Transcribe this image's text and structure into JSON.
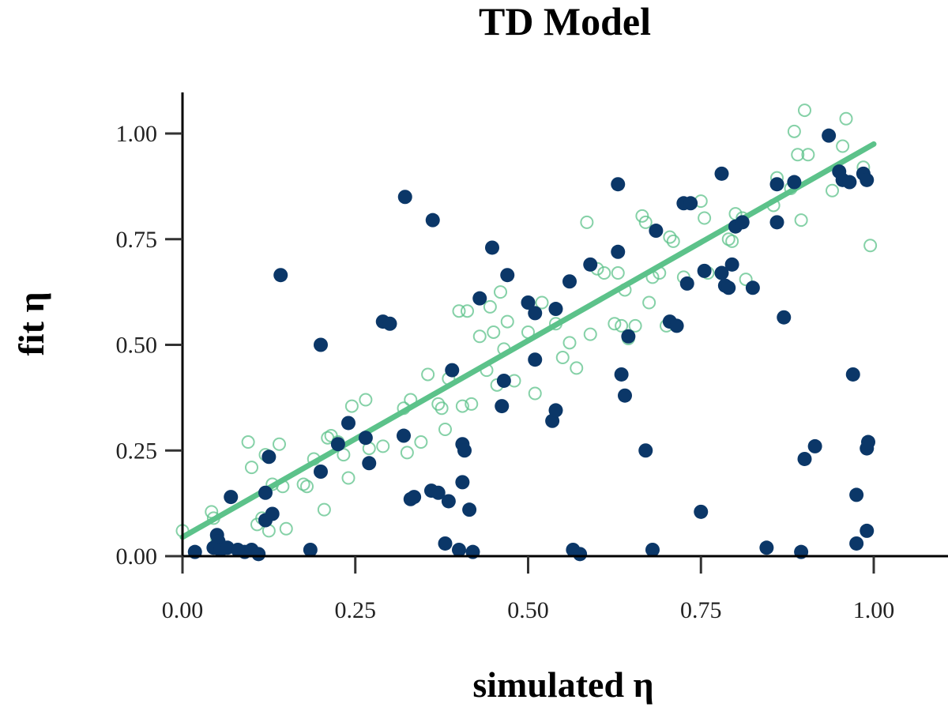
{
  "chart_data": {
    "type": "scatter",
    "title": "TD Model",
    "xlabel": "simulated η",
    "ylabel": "fit η",
    "xlim": [
      0.0,
      1.08
    ],
    "ylim": [
      0.0,
      1.1
    ],
    "xticks": [
      0.0,
      0.25,
      0.5,
      0.75,
      1.0
    ],
    "yticks": [
      0.0,
      0.25,
      0.5,
      0.75,
      1.0
    ],
    "xtick_labels": [
      "0.00",
      "0.25",
      "0.50",
      "0.75",
      "1.00"
    ],
    "ytick_labels": [
      "0.00",
      "0.25",
      "0.50",
      "0.75",
      "1.00"
    ],
    "grid": false,
    "legend": null,
    "colors": {
      "filled": "#0b3768",
      "open": "#5cc28a",
      "line": "#5cc28a"
    },
    "fit_line": {
      "x": [
        0.0,
        1.0
      ],
      "y": [
        0.045,
        0.975
      ]
    },
    "series": [
      {
        "marker": "open",
        "x": [
          0.0,
          0.042,
          0.045,
          0.05,
          0.095,
          0.1,
          0.108,
          0.115,
          0.12,
          0.125,
          0.13,
          0.14,
          0.145,
          0.15,
          0.175,
          0.18,
          0.19,
          0.205,
          0.21,
          0.215,
          0.225,
          0.233,
          0.24,
          0.245,
          0.265,
          0.27,
          0.29,
          0.32,
          0.325,
          0.33,
          0.345,
          0.355,
          0.37,
          0.375,
          0.38,
          0.385,
          0.4,
          0.405,
          0.412,
          0.418,
          0.43,
          0.44,
          0.445,
          0.45,
          0.455,
          0.46,
          0.465,
          0.47,
          0.48,
          0.5,
          0.51,
          0.52,
          0.54,
          0.55,
          0.56,
          0.57,
          0.585,
          0.59,
          0.6,
          0.61,
          0.625,
          0.63,
          0.635,
          0.64,
          0.645,
          0.655,
          0.665,
          0.67,
          0.675,
          0.68,
          0.69,
          0.7,
          0.705,
          0.71,
          0.725,
          0.75,
          0.755,
          0.76,
          0.79,
          0.795,
          0.8,
          0.81,
          0.815,
          0.855,
          0.86,
          0.88,
          0.885,
          0.89,
          0.895,
          0.9,
          0.905,
          0.94,
          0.955,
          0.96,
          0.985,
          0.995
        ],
        "y": [
          0.06,
          0.105,
          0.09,
          0.04,
          0.27,
          0.21,
          0.075,
          0.09,
          0.24,
          0.06,
          0.17,
          0.265,
          0.165,
          0.065,
          0.17,
          0.165,
          0.23,
          0.11,
          0.28,
          0.285,
          0.27,
          0.24,
          0.185,
          0.355,
          0.37,
          0.255,
          0.26,
          0.35,
          0.245,
          0.37,
          0.27,
          0.43,
          0.36,
          0.35,
          0.3,
          0.42,
          0.58,
          0.355,
          0.58,
          0.36,
          0.52,
          0.44,
          0.59,
          0.53,
          0.405,
          0.625,
          0.49,
          0.555,
          0.415,
          0.53,
          0.385,
          0.6,
          0.55,
          0.47,
          0.505,
          0.445,
          0.79,
          0.525,
          0.68,
          0.67,
          0.55,
          0.67,
          0.545,
          0.63,
          0.515,
          0.545,
          0.805,
          0.79,
          0.6,
          0.66,
          0.67,
          0.545,
          0.755,
          0.745,
          0.66,
          0.84,
          0.8,
          0.67,
          0.75,
          0.745,
          0.81,
          0.8,
          0.655,
          0.83,
          0.895,
          0.87,
          1.005,
          0.95,
          0.795,
          1.055,
          0.95,
          0.865,
          0.97,
          1.035,
          0.92,
          0.735
        ]
      },
      {
        "marker": "filled",
        "x": [
          0.018,
          0.045,
          0.05,
          0.052,
          0.055,
          0.065,
          0.07,
          0.08,
          0.09,
          0.1,
          0.11,
          0.12,
          0.12,
          0.125,
          0.13,
          0.142,
          0.185,
          0.2,
          0.2,
          0.225,
          0.24,
          0.265,
          0.27,
          0.29,
          0.3,
          0.32,
          0.322,
          0.33,
          0.335,
          0.36,
          0.362,
          0.37,
          0.38,
          0.385,
          0.39,
          0.4,
          0.405,
          0.405,
          0.408,
          0.415,
          0.42,
          0.43,
          0.448,
          0.462,
          0.465,
          0.47,
          0.5,
          0.51,
          0.51,
          0.535,
          0.54,
          0.54,
          0.56,
          0.565,
          0.575,
          0.59,
          0.63,
          0.63,
          0.635,
          0.64,
          0.645,
          0.67,
          0.68,
          0.685,
          0.705,
          0.715,
          0.725,
          0.73,
          0.735,
          0.75,
          0.755,
          0.78,
          0.78,
          0.785,
          0.79,
          0.795,
          0.8,
          0.81,
          0.825,
          0.845,
          0.86,
          0.86,
          0.87,
          0.885,
          0.895,
          0.9,
          0.915,
          0.935,
          0.95,
          0.955,
          0.965,
          0.97,
          0.975,
          0.975,
          0.985,
          0.99,
          0.99,
          0.99,
          0.992
        ],
        "y": [
          0.01,
          0.02,
          0.05,
          0.035,
          0.015,
          0.02,
          0.14,
          0.015,
          0.01,
          0.015,
          0.005,
          0.085,
          0.15,
          0.235,
          0.1,
          0.665,
          0.015,
          0.2,
          0.5,
          0.265,
          0.315,
          0.28,
          0.22,
          0.555,
          0.55,
          0.285,
          0.85,
          0.135,
          0.14,
          0.155,
          0.795,
          0.15,
          0.03,
          0.13,
          0.44,
          0.015,
          0.175,
          0.265,
          0.25,
          0.11,
          0.01,
          0.61,
          0.73,
          0.355,
          0.415,
          0.665,
          0.6,
          0.575,
          0.465,
          0.32,
          0.345,
          0.585,
          0.65,
          0.015,
          0.005,
          0.69,
          0.72,
          0.88,
          0.43,
          0.38,
          0.52,
          0.25,
          0.015,
          0.77,
          0.555,
          0.545,
          0.835,
          0.645,
          0.835,
          0.105,
          0.675,
          0.905,
          0.67,
          0.64,
          0.635,
          0.69,
          0.78,
          0.79,
          0.635,
          0.02,
          0.88,
          0.79,
          0.565,
          0.885,
          0.01,
          0.23,
          0.26,
          0.995,
          0.91,
          0.89,
          0.885,
          0.43,
          0.03,
          0.145,
          0.905,
          0.89,
          0.06,
          0.255,
          0.27
        ]
      }
    ]
  }
}
